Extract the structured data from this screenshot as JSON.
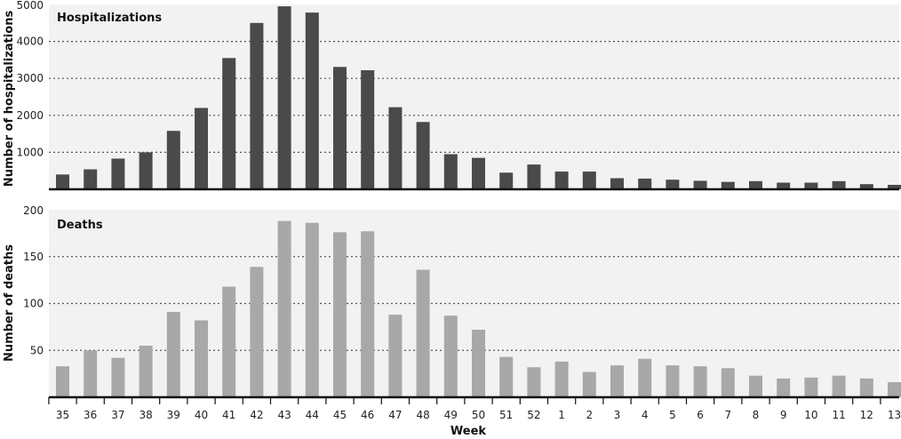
{
  "chart_data": [
    {
      "type": "bar",
      "title": "Hospitalizations",
      "ylabel": "Number of hospitalizations",
      "xlabel": "",
      "ylim": [
        0,
        5000
      ],
      "yticks": [
        1000,
        2000,
        3000,
        4000,
        5000
      ],
      "grid": true,
      "bar_color": "#4a4a4a",
      "categories": [
        "35",
        "36",
        "37",
        "38",
        "39",
        "40",
        "41",
        "42",
        "43",
        "44",
        "45",
        "46",
        "47",
        "48",
        "49",
        "50",
        "51",
        "52",
        "1",
        "2",
        "3",
        "4",
        "5",
        "6",
        "7",
        "8",
        "9",
        "10",
        "11",
        "12",
        "13"
      ],
      "values": [
        400,
        540,
        830,
        1000,
        1580,
        2200,
        3550,
        4500,
        4950,
        4780,
        3310,
        3220,
        2220,
        1820,
        950,
        850,
        450,
        670,
        480,
        480,
        300,
        290,
        260,
        230,
        200,
        220,
        180,
        180,
        220,
        140,
        120
      ]
    },
    {
      "type": "bar",
      "title": "Deaths",
      "ylabel": "Number of deaths",
      "xlabel": "Week",
      "ylim": [
        0,
        200
      ],
      "yticks": [
        50,
        100,
        150,
        200
      ],
      "grid": true,
      "bar_color": "#a8a8a8",
      "categories": [
        "35",
        "36",
        "37",
        "38",
        "39",
        "40",
        "41",
        "42",
        "43",
        "44",
        "45",
        "46",
        "47",
        "48",
        "49",
        "50",
        "51",
        "52",
        "1",
        "2",
        "3",
        "4",
        "5",
        "6",
        "7",
        "8",
        "9",
        "10",
        "11",
        "12",
        "13"
      ],
      "values": [
        33,
        50,
        42,
        55,
        91,
        82,
        118,
        139,
        188,
        186,
        176,
        177,
        88,
        136,
        87,
        72,
        43,
        32,
        38,
        27,
        34,
        41,
        34,
        33,
        31,
        23,
        20,
        21,
        23,
        20,
        16
      ]
    }
  ]
}
